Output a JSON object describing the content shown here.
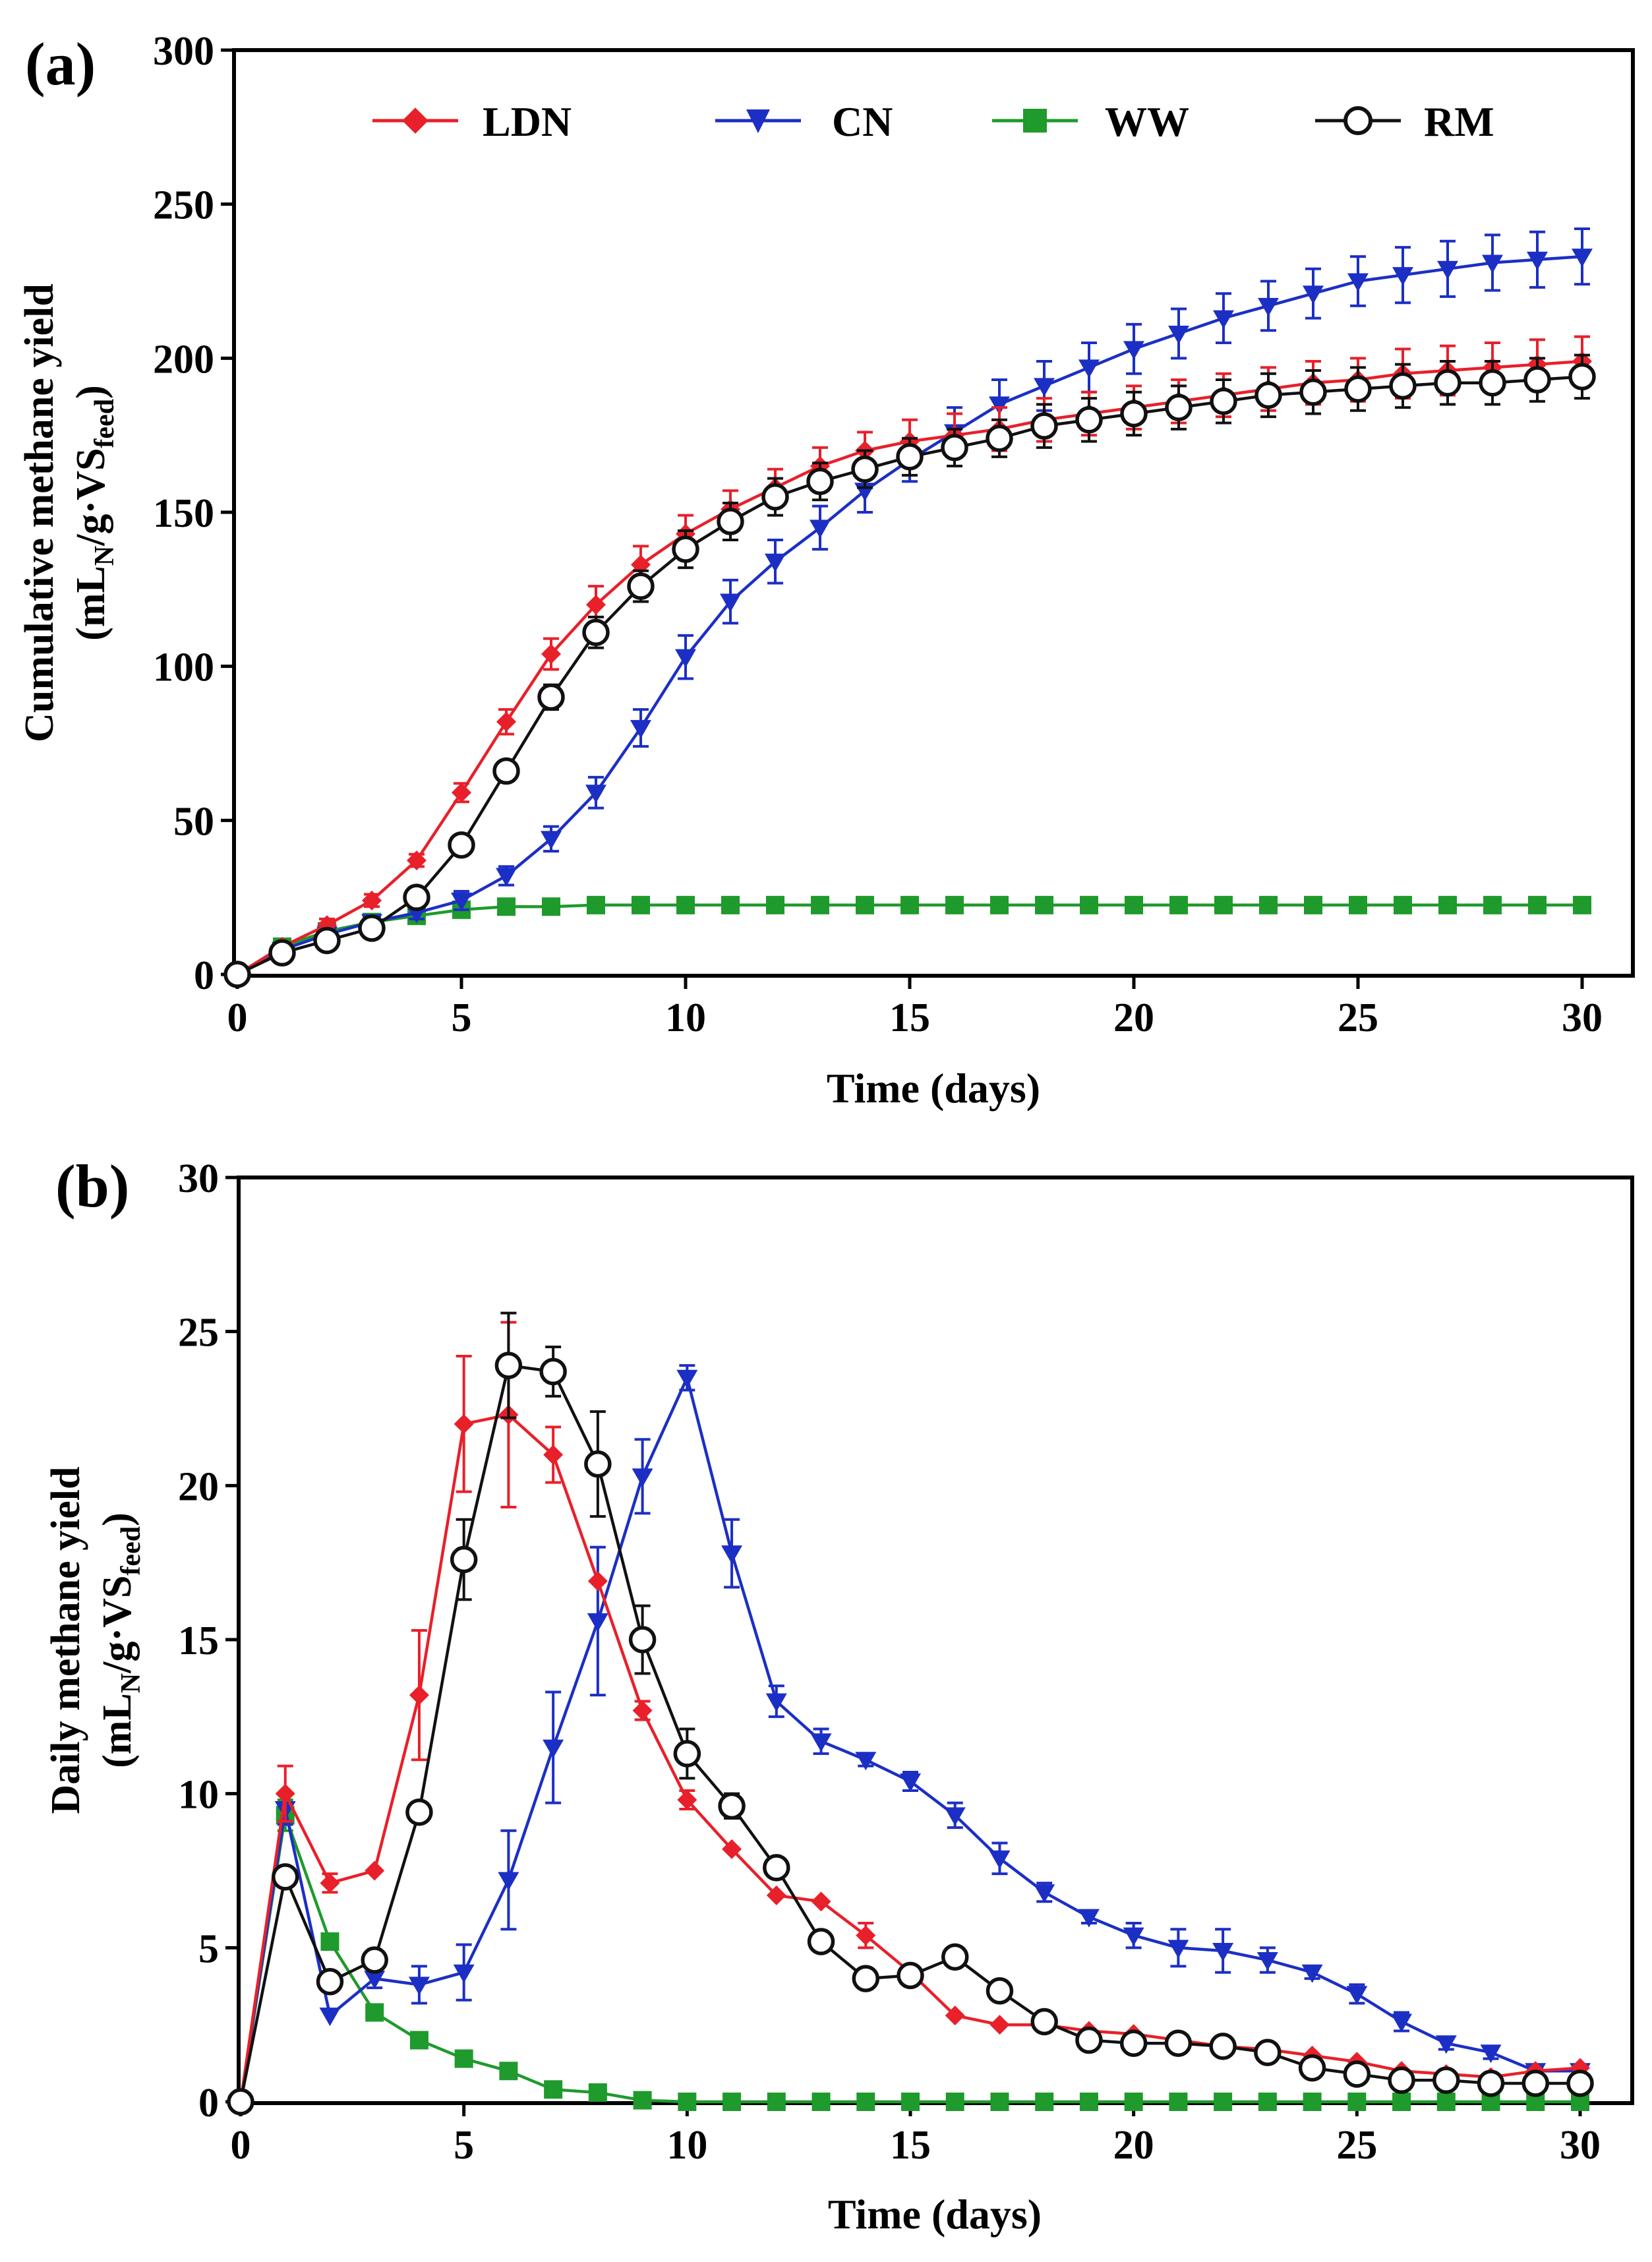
{
  "chart_data": [
    {
      "panel_label": "(a)",
      "type": "line",
      "xlabel": "Time (days)",
      "ylabel": {
        "line1": "Cumulative methane yield",
        "prefix": "(mL",
        "sub1": "N",
        "mid": "/g·VS",
        "sub2": "feed",
        "suffix": ")"
      },
      "xlim": [
        0,
        30
      ],
      "ylim": [
        0,
        300
      ],
      "xticks": [
        "0",
        "5",
        "10",
        "15",
        "20",
        "25",
        "30"
      ],
      "yticks": [
        "0",
        "50",
        "100",
        "150",
        "200",
        "250",
        "300"
      ],
      "legend_position": "top",
      "x": [
        0,
        1,
        2,
        3,
        4,
        5,
        6,
        7,
        8,
        9,
        10,
        11,
        12,
        13,
        14,
        15,
        16,
        17,
        18,
        19,
        20,
        21,
        22,
        23,
        24,
        25,
        26,
        27,
        28,
        29,
        30
      ],
      "series": [
        {
          "name": "LDN",
          "color": "#e8202a",
          "marker": "diamond",
          "values": [
            0,
            9,
            16,
            24,
            37,
            59,
            82,
            104,
            120,
            133,
            143,
            151,
            158,
            165,
            170,
            173,
            175,
            177,
            180,
            182,
            184,
            186,
            188,
            190,
            192,
            193,
            195,
            196,
            197,
            198,
            199
          ],
          "errors": [
            0,
            1,
            2,
            2,
            2,
            3,
            4,
            5,
            6,
            6,
            6,
            6,
            6,
            6,
            6,
            7,
            7,
            7,
            7,
            7,
            7,
            7,
            7,
            7,
            7,
            7,
            8,
            8,
            8,
            8,
            8
          ]
        },
        {
          "name": "CN",
          "color": "#1c2fc4",
          "marker": "triangle-down",
          "values": [
            0,
            8,
            13,
            17,
            20,
            24,
            32,
            44,
            59,
            80,
            103,
            121,
            134,
            145,
            157,
            167,
            176,
            185,
            191,
            197,
            203,
            208,
            213,
            217,
            221,
            225,
            227,
            229,
            231,
            232,
            233
          ],
          "errors": [
            0,
            1,
            2,
            2,
            2,
            3,
            3,
            4,
            5,
            6,
            7,
            7,
            7,
            7,
            7,
            7,
            8,
            8,
            8,
            8,
            8,
            8,
            8,
            8,
            8,
            8,
            9,
            9,
            9,
            9,
            9
          ]
        },
        {
          "name": "WW",
          "color": "#1f9a2c",
          "marker": "square",
          "values": [
            0,
            9,
            14,
            17,
            19,
            21,
            22,
            22,
            22.5,
            22.5,
            22.5,
            22.5,
            22.5,
            22.5,
            22.5,
            22.5,
            22.5,
            22.5,
            22.5,
            22.5,
            22.5,
            22.5,
            22.5,
            22.5,
            22.5,
            22.5,
            22.5,
            22.5,
            22.5,
            22.5,
            22.5
          ],
          "errors": [
            0,
            0,
            0,
            0,
            0,
            0,
            0,
            0,
            0,
            0,
            0,
            0,
            0,
            0,
            0,
            0,
            0,
            0,
            0,
            0,
            0,
            0,
            0,
            0,
            0,
            0,
            0,
            0,
            0,
            0,
            0
          ]
        },
        {
          "name": "RM",
          "color": "#111111",
          "marker": "circle-open",
          "values": [
            0,
            7,
            11,
            15,
            25,
            42,
            66,
            90,
            111,
            126,
            138,
            147,
            155,
            160,
            164,
            168,
            171,
            174,
            178,
            180,
            182,
            184,
            186,
            188,
            189,
            190,
            191,
            192,
            192,
            193,
            194
          ],
          "errors": [
            0,
            1,
            1,
            2,
            2,
            2,
            3,
            4,
            5,
            5,
            6,
            6,
            6,
            6,
            6,
            6,
            6,
            6,
            7,
            7,
            7,
            7,
            7,
            7,
            7,
            7,
            7,
            7,
            7,
            7,
            7
          ]
        }
      ]
    },
    {
      "panel_label": "(b)",
      "type": "line",
      "xlabel": "Time (days)",
      "ylabel": {
        "line1": "Daily methane yield",
        "prefix": "(mL",
        "sub1": "N",
        "mid": "/g·VS",
        "sub2": "feed",
        "suffix": ")"
      },
      "xlim": [
        0,
        30
      ],
      "ylim": [
        0,
        30
      ],
      "xticks": [
        "0",
        "5",
        "10",
        "15",
        "20",
        "25",
        "30"
      ],
      "yticks": [
        "0",
        "5",
        "10",
        "15",
        "20",
        "25",
        "30"
      ],
      "x": [
        0,
        1,
        2,
        3,
        4,
        5,
        6,
        7,
        8,
        9,
        10,
        11,
        12,
        13,
        14,
        15,
        16,
        17,
        18,
        19,
        20,
        21,
        22,
        23,
        24,
        25,
        26,
        27,
        28,
        29,
        30
      ],
      "series": [
        {
          "name": "LDN",
          "color": "#e8202a",
          "marker": "diamond",
          "values": [
            0,
            10,
            7.1,
            7.5,
            13.2,
            22,
            22.3,
            21,
            16.9,
            12.7,
            9.8,
            8.2,
            6.7,
            6.5,
            5.4,
            4.2,
            2.8,
            2.5,
            2.5,
            2.3,
            2.2,
            2.0,
            1.8,
            1.7,
            1.5,
            1.3,
            1.0,
            0.9,
            0.8,
            1.0,
            1.1
          ],
          "errors": [
            0,
            0.9,
            0.3,
            0,
            2.1,
            2.2,
            3.0,
            0.9,
            0,
            0.3,
            0.3,
            0,
            0,
            0,
            0.4,
            0,
            0,
            0,
            0,
            0,
            0,
            0,
            0,
            0,
            0,
            0,
            0,
            0,
            0,
            0,
            0
          ]
        },
        {
          "name": "CN",
          "color": "#1c2fc4",
          "marker": "triangle-down",
          "values": [
            0,
            9.5,
            2.8,
            4.0,
            3.8,
            4.2,
            7.2,
            11.5,
            15.6,
            20.3,
            23.5,
            17.8,
            13.0,
            11.7,
            11.1,
            10.4,
            9.3,
            7.9,
            6.8,
            6.0,
            5.4,
            5.0,
            4.9,
            4.6,
            4.2,
            3.5,
            2.6,
            1.9,
            1.6,
            1.0,
            1.0
          ],
          "errors": [
            0,
            0.5,
            0,
            0.3,
            0.6,
            0.9,
            1.6,
            1.8,
            2.4,
            1.2,
            0.4,
            1.1,
            0.5,
            0.4,
            0.2,
            0.3,
            0.4,
            0.5,
            0.3,
            0.2,
            0.4,
            0.6,
            0.7,
            0.4,
            0.2,
            0.3,
            0.3,
            0.2,
            0.2,
            0.1,
            0.1
          ]
        },
        {
          "name": "WW",
          "color": "#1f9a2c",
          "marker": "square",
          "values": [
            0,
            9.3,
            5.2,
            2.9,
            2.0,
            1.4,
            1.0,
            0.4,
            0.3,
            0.05,
            0,
            0,
            0,
            0,
            0,
            0,
            0,
            0,
            0,
            0,
            0,
            0,
            0,
            0,
            0,
            0,
            0,
            0,
            0,
            0,
            0
          ],
          "errors": [
            0,
            0.5,
            0,
            0,
            0,
            0,
            0,
            0,
            0,
            0,
            0,
            0,
            0,
            0,
            0,
            0,
            0,
            0,
            0,
            0,
            0,
            0,
            0,
            0,
            0,
            0,
            0,
            0,
            0,
            0,
            0
          ]
        },
        {
          "name": "RM",
          "color": "#111111",
          "marker": "circle-open",
          "values": [
            0,
            7.3,
            3.9,
            4.6,
            9.4,
            17.6,
            23.9,
            23.7,
            20.7,
            15.0,
            11.3,
            9.6,
            7.6,
            5.2,
            4.0,
            4.1,
            4.7,
            3.6,
            2.6,
            2.0,
            1.9,
            1.9,
            1.8,
            1.6,
            1.1,
            0.9,
            0.7,
            0.7,
            0.6,
            0.6,
            0.6
          ],
          "errors": [
            0,
            0,
            0,
            0,
            0,
            1.3,
            1.7,
            0.8,
            1.7,
            1.1,
            0.8,
            0.4,
            0,
            0,
            0,
            0,
            0,
            0,
            0,
            0,
            0,
            0,
            0,
            0,
            0,
            0,
            0,
            0,
            0,
            0,
            0
          ]
        }
      ]
    }
  ]
}
